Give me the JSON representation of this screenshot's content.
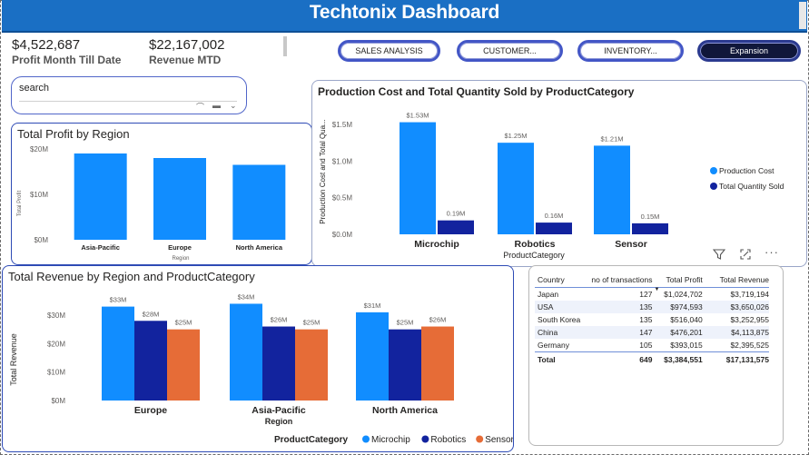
{
  "header": {
    "title": "Techtonix Dashboard"
  },
  "kpis": [
    {
      "value": "$4,522,687",
      "label": "Profit Month Till Date"
    },
    {
      "value": "$22,167,002",
      "label": "Revenue MTD"
    }
  ],
  "nav": {
    "sales": "SALES ANALYSIS",
    "customer": "CUSTOMER...",
    "inventory": "INVENTORY...",
    "expansion": "Expansion"
  },
  "search": {
    "label": "search"
  },
  "colors": {
    "production_cost": "#118dff",
    "quantity": "#12239e",
    "microchip": "#118dff",
    "robotics": "#12239e",
    "sensor": "#e66c37",
    "profit_bar": "#118dff"
  },
  "icons": [
    "filter-icon",
    "focus-mode-icon",
    "more-options-icon",
    "chevron-up-icon",
    "chevron-down-icon"
  ],
  "chart_data": [
    {
      "id": "profit_by_region",
      "type": "bar",
      "title": "Total Profit by Region",
      "xlabel": "Region",
      "ylabel": "Total Profit",
      "categories": [
        "Asia-Pacific",
        "Europe",
        "North America"
      ],
      "values": [
        19000000,
        18000000,
        16500000
      ],
      "yticks": [
        "$0M",
        "$10M",
        "$20M"
      ],
      "ylim": [
        0,
        20000000
      ]
    },
    {
      "id": "production_cost_qty",
      "type": "bar",
      "title": "Production Cost and Total Quantity Sold by ProductCategory",
      "xlabel": "ProductCategory",
      "ylabel": "Production Cost and Total Qua...",
      "categories": [
        "Microchip",
        "Robotics",
        "Sensor"
      ],
      "series": [
        {
          "name": "Production Cost",
          "values": [
            1530000,
            1250000,
            1210000
          ],
          "labels": [
            "$1.53M",
            "$1.25M",
            "$1.21M"
          ]
        },
        {
          "name": "Total Quantity Sold",
          "values": [
            190000,
            160000,
            150000
          ],
          "labels": [
            "0.19M",
            "0.16M",
            "0.15M"
          ]
        }
      ],
      "yticks": [
        "$0.0M",
        "$0.5M",
        "$1.0M",
        "$1.5M"
      ],
      "ylim": [
        0,
        1500000
      ],
      "legend": "right"
    },
    {
      "id": "revenue_by_region_category",
      "type": "bar",
      "title": "Total Revenue by Region and ProductCategory",
      "xlabel": "Region",
      "ylabel": "Total Revenue",
      "categories": [
        "Europe",
        "Asia-Pacific",
        "North America"
      ],
      "series": [
        {
          "name": "Microchip",
          "values": [
            33000000,
            34000000,
            31000000
          ],
          "labels": [
            "$33M",
            "$34M",
            "$31M"
          ]
        },
        {
          "name": "Robotics",
          "values": [
            28000000,
            26000000,
            25000000
          ],
          "labels": [
            "$28M",
            "$26M",
            "$25M"
          ]
        },
        {
          "name": "Sensor",
          "values": [
            25000000,
            25000000,
            26000000
          ],
          "labels": [
            "$25M",
            "$25M",
            "$26M"
          ]
        }
      ],
      "yticks": [
        "$0M",
        "$10M",
        "$20M",
        "$30M"
      ],
      "ylim": [
        0,
        30000000
      ],
      "legend_title": "ProductCategory",
      "legend": "bottom"
    },
    {
      "id": "country_table",
      "type": "table",
      "columns": [
        "Country",
        "no of transactions",
        "Total Profit",
        "Total Revenue"
      ],
      "rows": [
        [
          "Japan",
          "127",
          "$1,024,702",
          "$3,719,194"
        ],
        [
          "USA",
          "135",
          "$974,593",
          "$3,650,026"
        ],
        [
          "South Korea",
          "135",
          "$516,040",
          "$3,252,955"
        ],
        [
          "China",
          "147",
          "$476,201",
          "$4,113,875"
        ],
        [
          "Germany",
          "105",
          "$393,015",
          "$2,395,525"
        ]
      ],
      "total": [
        "Total",
        "649",
        "$3,384,551",
        "$17,131,575"
      ],
      "sorted_by": "Total Profit"
    }
  ]
}
